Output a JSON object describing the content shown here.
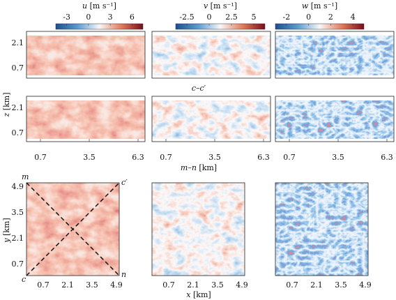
{
  "colorbars": [
    {
      "variable": "u",
      "unit": "[m s⁻¹]",
      "ticks": [
        "-3",
        "0",
        "3",
        "6"
      ]
    },
    {
      "variable": "v",
      "unit": "[m s⁻¹]",
      "ticks": [
        "-2.5",
        "0",
        "2.5",
        "5"
      ]
    },
    {
      "variable": "w",
      "unit": "[m s⁻¹]",
      "ticks": [
        "-2",
        "0",
        "2",
        "4"
      ]
    }
  ],
  "vertical_sections": {
    "upper_title": "c–c′",
    "z_label": "z",
    "z_unit": "[km]",
    "z_ticks": [
      "2.1",
      "0.7"
    ],
    "x_label": "m–n",
    "x_unit": "[km]",
    "x_ticks": [
      "0.7",
      "3.5",
      "6.3"
    ]
  },
  "horizontal_sections": {
    "y_label": "y",
    "y_unit": "[km]",
    "y_ticks": [
      "4.9",
      "3.5",
      "2.1",
      "0.7"
    ],
    "x_label": "x",
    "x_unit": "[km]",
    "x_ticks": [
      "0.7",
      "2.1",
      "3.5",
      "4.9"
    ],
    "corners": {
      "top_left": "m",
      "top_right": "c′",
      "bottom_left": "c",
      "bottom_right": "n"
    }
  }
}
